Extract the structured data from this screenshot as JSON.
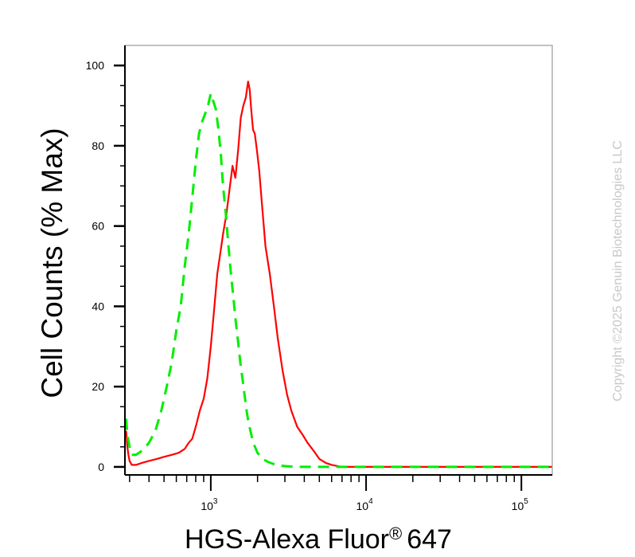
{
  "chart_data": {
    "type": "line",
    "xlabel": "HGS-Alexa Fluor",
    "xlabel_mark": "®",
    "xlabel_suffix": "647",
    "ylabel": "Cell Counts (% Max)",
    "x_scale": "log",
    "xlim": [
      280,
      158000
    ],
    "ylim": [
      -2,
      105
    ],
    "x_ticks": [
      {
        "base": "10",
        "exp": "3",
        "value": 1000
      },
      {
        "base": "10",
        "exp": "4",
        "value": 10000
      },
      {
        "base": "10",
        "exp": "5",
        "value": 100000
      }
    ],
    "y_ticks": [
      "0",
      "20",
      "40",
      "60",
      "80",
      "100"
    ],
    "y_tick_values": [
      0,
      20,
      40,
      60,
      80,
      100
    ],
    "grid": false,
    "legend": "none",
    "series": [
      {
        "color": "#ff0000",
        "style": "solid",
        "x": [
          285,
          290,
          295,
          300,
          310,
          330,
          360,
          400,
          450,
          500,
          560,
          620,
          680,
          720,
          760,
          800,
          850,
          900,
          950,
          1000,
          1050,
          1100,
          1150,
          1200,
          1260,
          1320,
          1380,
          1440,
          1500,
          1560,
          1620,
          1680,
          1740,
          1780,
          1820,
          1870,
          1920,
          1980,
          2050,
          2150,
          2250,
          2400,
          2550,
          2700,
          2900,
          3100,
          3300,
          3600,
          3900,
          4200,
          4600,
          5000,
          5500,
          6000,
          7000,
          8000,
          10000,
          20000,
          50000,
          100000,
          158000
        ],
        "y": [
          9,
          5,
          3,
          1.5,
          0.5,
          0.5,
          1,
          1.5,
          2,
          2.5,
          3,
          3.5,
          4.5,
          6,
          7,
          10,
          14,
          17,
          22,
          30,
          39,
          48,
          53,
          58,
          63,
          69,
          75,
          72,
          79,
          87,
          90,
          92,
          96,
          94,
          89,
          84,
          83,
          79,
          74,
          64,
          55,
          48,
          40,
          32,
          24,
          18,
          14,
          10,
          8,
          6,
          4,
          2,
          1,
          0.5,
          0,
          0,
          0,
          0,
          0,
          0,
          0
        ]
      },
      {
        "color": "#00ee00",
        "style": "dashed",
        "x": [
          285,
          290,
          300,
          310,
          330,
          360,
          400,
          440,
          480,
          520,
          560,
          600,
          640,
          680,
          720,
          760,
          800,
          840,
          880,
          920,
          960,
          1000,
          1040,
          1080,
          1120,
          1160,
          1200,
          1250,
          1300,
          1350,
          1400,
          1450,
          1500,
          1550,
          1600,
          1650,
          1700,
          1750,
          1800,
          1850,
          1900,
          1950,
          2000,
          2100,
          2200,
          2350,
          2500,
          2700,
          3000,
          3500,
          5000,
          10000,
          50000,
          158000
        ],
        "y": [
          12,
          8,
          5,
          3,
          3,
          4,
          6,
          9,
          14,
          20,
          26,
          34,
          40,
          50,
          58,
          67,
          76,
          83,
          86,
          88,
          90,
          93,
          91,
          89,
          84,
          78,
          70,
          63,
          55,
          48,
          42,
          36,
          31,
          26,
          22,
          18,
          14,
          11,
          9,
          7,
          5.5,
          4.5,
          3.5,
          2.5,
          1.8,
          1.2,
          0.8,
          0.4,
          0.2,
          0,
          0,
          0,
          0,
          0
        ]
      }
    ]
  },
  "watermark": {
    "text": "Copyright ©2025 Genuin Biotechnologies LLC"
  }
}
